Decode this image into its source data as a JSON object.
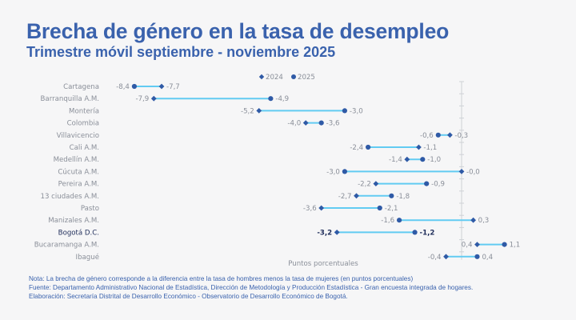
{
  "header": {
    "title": "Brecha de género en la tasa de desempleo",
    "subtitle": "Trimestre móvil septiembre - noviembre 2025"
  },
  "colors": {
    "title": "#3a62ad",
    "marker": "#2f5aa6",
    "connector": "#62cbf2",
    "label": "#8a8f99",
    "highlight_label": "#1f2d5a",
    "axis": "#cfd2d6",
    "background": "#f6f6f7"
  },
  "chart_data": {
    "type": "dumbbell",
    "title": "Brecha de género en la tasa de desempleo",
    "subtitle": "Trimestre móvil septiembre - noviembre 2025",
    "xlabel": "Puntos porcentuales",
    "ylabel": "",
    "xlim": [
      -8.6,
      1.3
    ],
    "grid": false,
    "zero_line": true,
    "legend": {
      "placement": "top-center",
      "entries": [
        {
          "name": "2024",
          "marker": "diamond"
        },
        {
          "name": "2025",
          "marker": "circle"
        }
      ]
    },
    "highlight_category": "Bogotá D.C.",
    "categories": [
      "Cartagena",
      "Barranquilla A.M.",
      "Montería",
      "Colombia",
      "Villavicencio",
      "Cali A.M.",
      "Medellín A.M.",
      "Cúcuta A.M.",
      "Pereira A.M.",
      "13 ciudades A.M.",
      "Pasto",
      "Manizales A.M.",
      "Bogotá D.C.",
      "Bucaramanga A.M.",
      "Ibagué"
    ],
    "series": [
      {
        "name": "2024",
        "values": [
          -7.7,
          -7.9,
          -5.2,
          -4.0,
          -0.3,
          -1.1,
          -1.4,
          -0.0,
          -2.2,
          -2.7,
          -3.6,
          0.3,
          -3.2,
          0.4,
          -0.4
        ]
      },
      {
        "name": "2025",
        "values": [
          -8.4,
          -4.9,
          -3.0,
          -3.6,
          -0.6,
          -2.4,
          -1.0,
          -3.0,
          -0.9,
          -1.8,
          -2.1,
          -1.6,
          -1.2,
          1.1,
          0.4
        ]
      }
    ],
    "value_labels": {
      "2024": [
        "-7,7",
        "-7,9",
        "-5,2",
        "-4,0",
        "-0,3",
        "-1,1",
        "-1,4",
        "-0,0",
        "-2,2",
        "-2,7",
        "-3,6",
        "0,3",
        "-3,2",
        "0,4",
        "-0,4"
      ],
      "2025": [
        "-8,4",
        "-4,9",
        "-3,0",
        "-3,6",
        "-0,6",
        "-2,4",
        "-1,0",
        "-3,0",
        "-0,9",
        "-1,8",
        "-2,1",
        "-1,6",
        "-1,2",
        "1,1",
        "0,4"
      ]
    }
  },
  "notes": {
    "nota": "Nota: La brecha de género corresponde a la diferencia entre la tasa de hombres menos la tasa de mujeres (en puntos porcentuales)",
    "fuente": "Fuente: Departamento Administrativo Nacional de Estadística, Dirección de Metodología y Producción Estadística - Gran encuesta integrada de hogares.",
    "elaboracion": "Elaboración: Secretaría Distrital de Desarrollo Económico - Observatorio de Desarrollo Económico de Bogotá."
  }
}
